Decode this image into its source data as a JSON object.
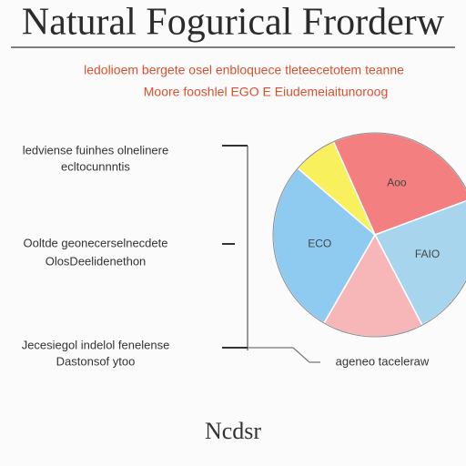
{
  "chart_data": {
    "type": "pie",
    "title": "Natural Fogurical Frorderw",
    "subtitle": [
      "ledolioem bergete osel enbloquece tleteecetotem teanne",
      "Moore fooshlel EGO E Eiudemeiaitunoroog"
    ],
    "categories": [
      "Aoo",
      "FAIO",
      null,
      "ECO",
      null
    ],
    "values": [
      26,
      23,
      16,
      28,
      7
    ],
    "colors": [
      "#f47f80",
      "#a8d5ee",
      "#f7b6b8",
      "#8fcbf1",
      "#f8f05c"
    ],
    "annotations": [
      [
        "ledviense fuinhes olnelinere",
        "ecltocunnntis"
      ],
      [
        "Ooltde geonecerselnecdete",
        "OlosDeelidenethon"
      ],
      [
        "Jecesiegol indelol fenelense",
        "Dastonsof ytoo"
      ]
    ],
    "callout": "ageneo taceleraw",
    "footer": "Ncdsr"
  }
}
